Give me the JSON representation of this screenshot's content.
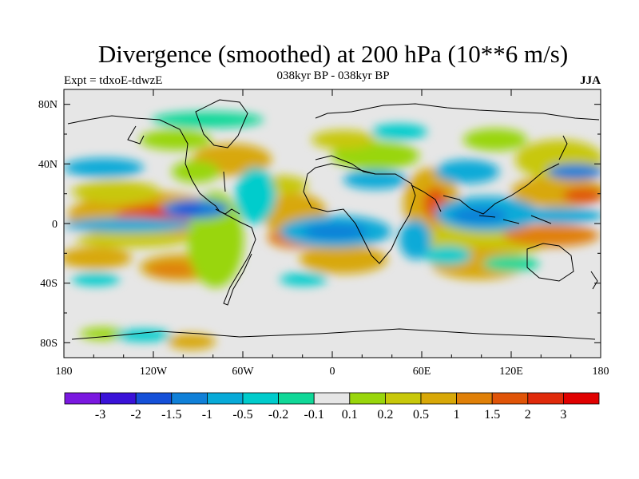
{
  "title": "Divergence (smoothed) at 200 hPa (10**6 m/s)",
  "subtitle": "038kyr BP - 038kyr BP",
  "left_string": "Expt = tdxoE-tdwzE",
  "right_string": "JJA",
  "lat_ticks": [
    "80N",
    "40N",
    "0",
    "40S",
    "80S"
  ],
  "lon_ticks": [
    "180",
    "120W",
    "60W",
    "0",
    "60E",
    "120E",
    "180"
  ],
  "colorbar": {
    "colors": [
      "#7a18e0",
      "#3a12d8",
      "#1550d8",
      "#1080d8",
      "#08aad8",
      "#00cccc",
      "#10d898",
      "#e6e6e6",
      "#99d60c",
      "#c8c80a",
      "#d8a808",
      "#e08008",
      "#e05408",
      "#e02a0a",
      "#e00000"
    ],
    "labels": [
      "-3",
      "-2",
      "-1.5",
      "-1",
      "-0.5",
      "-0.2",
      "-0.1",
      "0.1",
      "0.2",
      "0.5",
      "1",
      "1.5",
      "2",
      "3"
    ]
  }
}
